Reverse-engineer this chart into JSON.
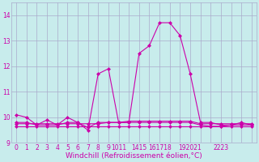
{
  "xlabel": "Windchill (Refroidissement éolien,°C)",
  "background_color": "#c8ecec",
  "grid_color": "#aaaacc",
  "line_color": "#cc00aa",
  "x": [
    0,
    1,
    2,
    3,
    4,
    5,
    6,
    7,
    8,
    9,
    10,
    11,
    12,
    13,
    14,
    15,
    16,
    17,
    18,
    19,
    20,
    21,
    22,
    23
  ],
  "line1": [
    10.1,
    10.0,
    9.7,
    9.9,
    9.7,
    10.0,
    9.8,
    9.5,
    11.7,
    11.9,
    9.8,
    9.8,
    12.5,
    12.8,
    13.7,
    13.7,
    13.2,
    11.7,
    9.8,
    9.8,
    9.7,
    9.7,
    9.8,
    9.7
  ],
  "line2": [
    9.65,
    9.65,
    9.65,
    9.65,
    9.65,
    9.65,
    9.65,
    9.65,
    9.65,
    9.65,
    9.65,
    9.65,
    9.65,
    9.65,
    9.65,
    9.65,
    9.65,
    9.65,
    9.65,
    9.65,
    9.65,
    9.65,
    9.65,
    9.65
  ],
  "line3": [
    9.75,
    9.75,
    9.75,
    9.75,
    9.75,
    9.75,
    9.75,
    9.75,
    9.75,
    9.8,
    9.8,
    9.8,
    9.8,
    9.8,
    9.8,
    9.8,
    9.8,
    9.8,
    9.7,
    9.65,
    9.65,
    9.7,
    9.7,
    9.7
  ],
  "line4": [
    9.8,
    9.8,
    9.7,
    9.7,
    9.7,
    9.8,
    9.8,
    9.6,
    9.8,
    9.8,
    9.8,
    9.85,
    9.85,
    9.85,
    9.85,
    9.85,
    9.85,
    9.85,
    9.75,
    9.75,
    9.75,
    9.75,
    9.75,
    9.75
  ],
  "ylim": [
    9.0,
    14.5
  ],
  "yticks": [
    9,
    10,
    11,
    12,
    13,
    14
  ],
  "xtick_labels": [
    "0",
    "1",
    "2",
    "3",
    "4",
    "5",
    "6",
    "7",
    "8",
    "9",
    "1011",
    "",
    "1415",
    "",
    "161718",
    "",
    "",
    "192021",
    "",
    "",
    "2223",
    "",
    "",
    ""
  ],
  "xlim": [
    -0.5,
    23.5
  ],
  "marker": "D",
  "markersize": 2,
  "linewidth": 0.8,
  "tick_fontsize": 5.5,
  "xlabel_fontsize": 6.5
}
